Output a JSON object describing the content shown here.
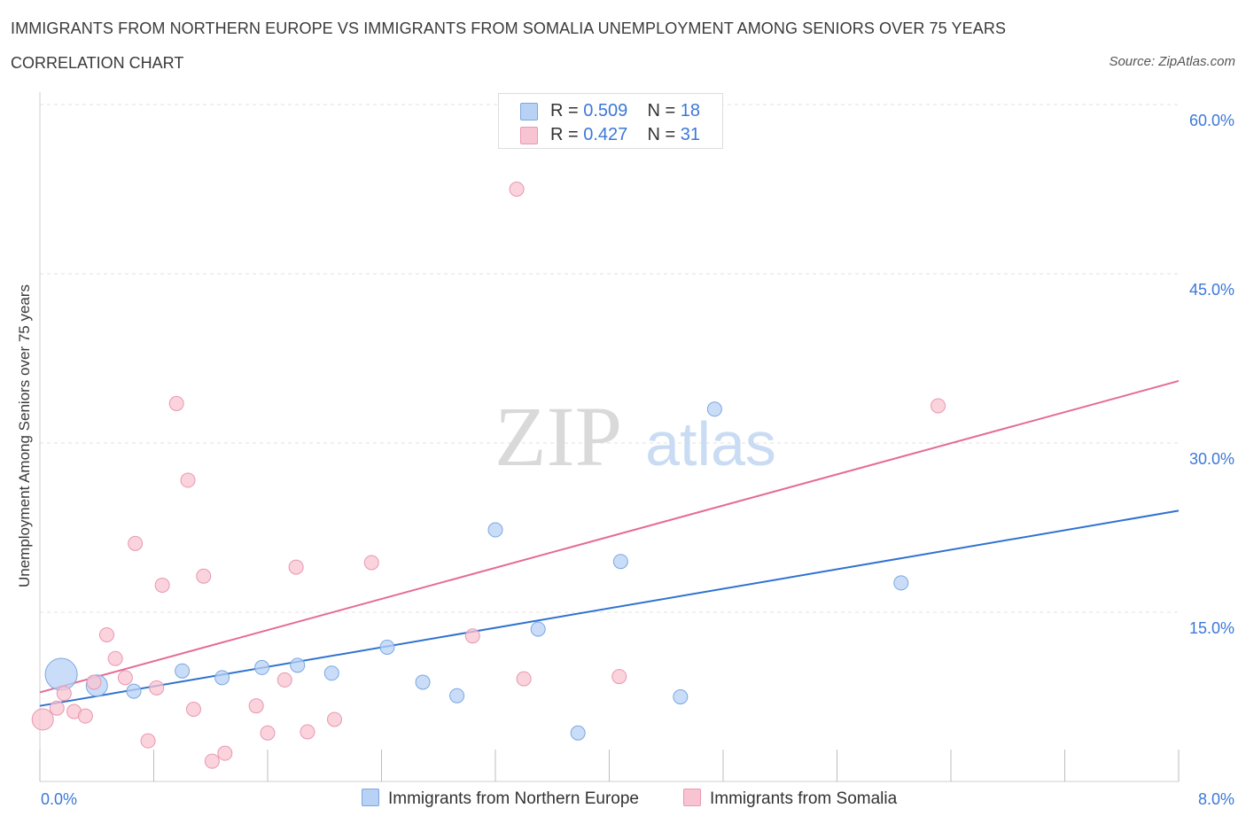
{
  "header": {
    "title": "IMMIGRANTS FROM NORTHERN EUROPE VS IMMIGRANTS FROM SOMALIA UNEMPLOYMENT AMONG SENIORS OVER 75 YEARS",
    "subtitle": "CORRELATION CHART",
    "source": "Source: ZipAtlas.com"
  },
  "legend": {
    "r_label": "R =",
    "n_label": "N =",
    "series": [
      {
        "r": "0.509",
        "n": "18"
      },
      {
        "r": "0.427",
        "n": "31"
      }
    ]
  },
  "watermark": {
    "zip": "ZIP",
    "atlas": "atlas"
  },
  "colors": {
    "blue_fill": "#b8d2f5",
    "blue_stroke": "#7aa7e0",
    "blue_line": "#2f72d0",
    "pink_fill": "#f8c4d2",
    "pink_stroke": "#e898b0",
    "pink_line": "#e56b94",
    "axis_text": "#3b78d8",
    "grid": "#e2e2e2"
  },
  "chart_data": {
    "type": "scatter",
    "title": "IMMIGRANTS FROM NORTHERN EUROPE VS IMMIGRANTS FROM SOMALIA UNEMPLOYMENT AMONG SENIORS OVER 75 YEARS",
    "xlabel": "",
    "ylabel": "Unemployment Among Seniors over 75 years",
    "xlim": [
      0,
      8
    ],
    "ylim": [
      0,
      60
    ],
    "x_tick_labels": [
      "0.0%",
      "8.0%"
    ],
    "y_ticks": [
      15,
      30,
      45,
      60
    ],
    "y_tick_labels": [
      "15.0%",
      "30.0%",
      "45.0%",
      "60.0%"
    ],
    "grid": true,
    "series": [
      {
        "name": "Immigrants from Northern Europe",
        "color": "blue",
        "points": [
          {
            "x": 0.15,
            "y": 9.5,
            "size": "large"
          },
          {
            "x": 0.4,
            "y": 8.5,
            "size": "medium"
          },
          {
            "x": 0.66,
            "y": 8.0
          },
          {
            "x": 1.0,
            "y": 9.8
          },
          {
            "x": 1.28,
            "y": 9.2
          },
          {
            "x": 1.56,
            "y": 10.1
          },
          {
            "x": 1.81,
            "y": 10.3
          },
          {
            "x": 2.05,
            "y": 9.6
          },
          {
            "x": 2.44,
            "y": 11.9
          },
          {
            "x": 2.69,
            "y": 8.8
          },
          {
            "x": 2.93,
            "y": 7.6
          },
          {
            "x": 3.2,
            "y": 22.3
          },
          {
            "x": 3.5,
            "y": 13.5
          },
          {
            "x": 3.78,
            "y": 4.3
          },
          {
            "x": 4.08,
            "y": 19.5
          },
          {
            "x": 4.5,
            "y": 7.5
          },
          {
            "x": 4.74,
            "y": 33.0
          },
          {
            "x": 6.05,
            "y": 17.6
          }
        ],
        "trend": {
          "x": [
            0,
            8
          ],
          "y": [
            6.7,
            24.0
          ]
        }
      },
      {
        "name": "Immigrants from Somalia",
        "color": "pink",
        "points": [
          {
            "x": 0.02,
            "y": 5.5,
            "size": "medium"
          },
          {
            "x": 0.12,
            "y": 6.5
          },
          {
            "x": 0.17,
            "y": 7.8
          },
          {
            "x": 0.24,
            "y": 6.2
          },
          {
            "x": 0.32,
            "y": 5.8
          },
          {
            "x": 0.38,
            "y": 8.8
          },
          {
            "x": 0.47,
            "y": 13.0
          },
          {
            "x": 0.53,
            "y": 10.9
          },
          {
            "x": 0.6,
            "y": 9.2
          },
          {
            "x": 0.67,
            "y": 21.1
          },
          {
            "x": 0.76,
            "y": 3.6
          },
          {
            "x": 0.82,
            "y": 8.3
          },
          {
            "x": 0.86,
            "y": 17.4
          },
          {
            "x": 0.96,
            "y": 33.5
          },
          {
            "x": 1.04,
            "y": 26.7
          },
          {
            "x": 1.08,
            "y": 6.4
          },
          {
            "x": 1.15,
            "y": 18.2
          },
          {
            "x": 1.21,
            "y": 1.8
          },
          {
            "x": 1.3,
            "y": 2.5
          },
          {
            "x": 1.52,
            "y": 6.7
          },
          {
            "x": 1.6,
            "y": 4.3
          },
          {
            "x": 1.72,
            "y": 9.0
          },
          {
            "x": 1.8,
            "y": 19.0
          },
          {
            "x": 1.88,
            "y": 4.4
          },
          {
            "x": 2.07,
            "y": 5.5
          },
          {
            "x": 2.33,
            "y": 19.4
          },
          {
            "x": 3.04,
            "y": 12.9
          },
          {
            "x": 3.35,
            "y": 52.5
          },
          {
            "x": 3.4,
            "y": 9.1
          },
          {
            "x": 4.07,
            "y": 9.3
          },
          {
            "x": 6.31,
            "y": 33.3
          }
        ],
        "trend": {
          "x": [
            0,
            8
          ],
          "y": [
            7.9,
            35.5
          ]
        }
      }
    ]
  }
}
